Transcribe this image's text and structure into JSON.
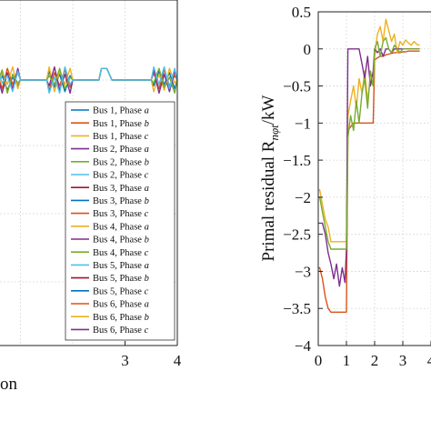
{
  "colors": [
    "#0072bd",
    "#d95319",
    "#edb120",
    "#7e2f8e",
    "#77ac30",
    "#4dbeee",
    "#a2142f"
  ],
  "chart_data": [
    {
      "type": "line",
      "title": "",
      "xlabel": "on",
      "ylabel": "",
      "xlim": [
        0,
        4
      ],
      "xticks": [
        {
          "value": 3,
          "label": "3"
        },
        {
          "value": 4,
          "label": "4"
        }
      ],
      "grid": true,
      "legend_position": "right",
      "legend": [
        {
          "bus": "Bus 1,",
          "phase": "Phase",
          "letter": "a"
        },
        {
          "bus": "Bus 1,",
          "phase": "Phase",
          "letter": "b"
        },
        {
          "bus": "Bus 1,",
          "phase": "Phase",
          "letter": "c"
        },
        {
          "bus": "Bus 2,",
          "phase": "Phase",
          "letter": "a"
        },
        {
          "bus": "Bus 2,",
          "phase": "Phase",
          "letter": "b"
        },
        {
          "bus": "Bus 2,",
          "phase": "Phase",
          "letter": "c"
        },
        {
          "bus": "Bus 3,",
          "phase": "Phase",
          "letter": "a"
        },
        {
          "bus": "Bus 3,",
          "phase": "Phase",
          "letter": "b"
        },
        {
          "bus": "Bus 3,",
          "phase": "Phase",
          "letter": "c"
        },
        {
          "bus": "Bus 4,",
          "phase": "Phase",
          "letter": "a"
        },
        {
          "bus": "Bus 4,",
          "phase": "Phase",
          "letter": "b"
        },
        {
          "bus": "Bus 4,",
          "phase": "Phase",
          "letter": "c"
        },
        {
          "bus": "Bus 5,",
          "phase": "Phase",
          "letter": "a"
        },
        {
          "bus": "Bus 5,",
          "phase": "Phase",
          "letter": "b"
        },
        {
          "bus": "Bus 5,",
          "phase": "Phase",
          "letter": "c"
        },
        {
          "bus": "Bus 6,",
          "phase": "Phase",
          "letter": "a"
        },
        {
          "bus": "Bus 6,",
          "phase": "Phase",
          "letter": "b"
        },
        {
          "bus": "Bus 6,",
          "phase": "Phase",
          "letter": "c"
        }
      ],
      "series_note_values_relative": true,
      "series": [
        {
          "x": [
            0,
            0.5,
            0.55,
            0.65,
            0.75,
            0.85,
            0.95,
            1.0,
            1.5,
            1.55,
            1.65,
            1.75,
            1.85,
            1.95,
            2.0,
            2.5,
            2.55,
            2.65,
            2.75,
            2.85,
            2.95,
            3.0,
            3.5,
            3.55,
            3.65,
            3.75,
            3.85,
            3.95,
            4.0
          ],
          "y": [
            0,
            0,
            -0.5,
            0.3,
            -0.7,
            0.2,
            -0.4,
            0,
            0,
            0.6,
            -0.5,
            0.4,
            -0.8,
            0.3,
            0,
            0,
            0.8,
            0.8,
            0,
            0,
            0,
            0,
            0,
            -0.4,
            0.6,
            -0.3,
            0.5,
            -0.6,
            0
          ]
        },
        {
          "x": [
            0,
            0.5,
            0.55,
            0.65,
            0.75,
            0.85,
            0.95,
            1.0,
            1.5,
            1.55,
            1.65,
            1.75,
            1.85,
            1.95,
            2.0,
            2.5,
            2.55,
            2.65,
            2.75,
            2.85,
            2.95,
            3.0,
            3.5,
            3.55,
            3.65,
            3.75,
            3.85,
            3.95,
            4.0
          ],
          "y": [
            0,
            0,
            0.6,
            -0.6,
            0.8,
            -0.3,
            0.5,
            0,
            0,
            -0.7,
            0.5,
            -0.4,
            0.7,
            -0.5,
            0,
            0,
            0.8,
            0.8,
            0,
            0,
            0,
            0,
            0,
            0.5,
            -0.6,
            0.7,
            -0.4,
            0.3,
            0
          ]
        },
        {
          "x": [
            0,
            0.5,
            0.55,
            0.65,
            0.75,
            0.85,
            0.95,
            1.0,
            1.5,
            1.55,
            1.65,
            1.75,
            1.85,
            1.95,
            2.0,
            2.5,
            2.55,
            2.65,
            2.75,
            2.85,
            2.95,
            3.0,
            3.5,
            3.55,
            3.65,
            3.75,
            3.85,
            3.95,
            4.0
          ],
          "y": [
            0,
            0,
            -0.9,
            0.5,
            -0.3,
            0.9,
            -0.6,
            0,
            0,
            0.9,
            -0.8,
            0.6,
            -0.3,
            0.8,
            0,
            0,
            0.8,
            0.8,
            0,
            0,
            0,
            0,
            0,
            -0.8,
            0.4,
            -0.7,
            0.8,
            -0.2,
            0
          ]
        },
        {
          "x": [
            0,
            0.5,
            0.55,
            0.65,
            0.75,
            0.85,
            0.95,
            1.0,
            1.5,
            1.55,
            1.65,
            1.75,
            1.85,
            1.95,
            2.0,
            2.5,
            2.55,
            2.65,
            2.75,
            2.85,
            2.95,
            3.0,
            3.5,
            3.55,
            3.65,
            3.75,
            3.85,
            3.95,
            4.0
          ],
          "y": [
            0,
            0,
            0.4,
            -0.9,
            0.5,
            -0.6,
            0.8,
            0,
            0,
            -0.4,
            0.9,
            -0.7,
            0.4,
            -0.9,
            0,
            0,
            0.8,
            0.8,
            0,
            0,
            0,
            0,
            0,
            0.7,
            -0.9,
            0.4,
            -0.8,
            0.6,
            0
          ]
        },
        {
          "x": [
            0,
            0.5,
            0.55,
            0.65,
            0.75,
            0.85,
            0.95,
            1.0,
            1.5,
            1.55,
            1.65,
            1.75,
            1.85,
            1.95,
            2.0,
            2.5,
            2.55,
            2.65,
            2.75,
            2.85,
            2.95,
            3.0,
            3.5,
            3.55,
            3.65,
            3.75,
            3.85,
            3.95,
            4.0
          ],
          "y": [
            0,
            0,
            -0.3,
            0.7,
            -0.9,
            0.4,
            -0.2,
            0,
            0,
            0.3,
            -0.3,
            0.8,
            -0.6,
            0.2,
            0,
            0,
            0.8,
            0.8,
            0,
            0,
            0,
            0,
            0,
            -0.2,
            0.8,
            -0.5,
            0.2,
            -0.9,
            0
          ]
        },
        {
          "x": [
            0,
            0.5,
            0.55,
            0.65,
            0.75,
            0.85,
            0.95,
            1.0,
            1.5,
            1.55,
            1.65,
            1.75,
            1.85,
            1.95,
            2.0,
            2.5,
            2.55,
            2.65,
            2.75,
            2.85,
            2.95,
            3.0,
            3.5,
            3.55,
            3.65,
            3.75,
            3.85,
            3.95,
            4.0
          ],
          "y": [
            0,
            0,
            0.8,
            -0.2,
            0.3,
            -0.8,
            0.6,
            0,
            0,
            -0.9,
            0.2,
            -0.9,
            0.9,
            -0.3,
            0,
            0,
            0.8,
            0.8,
            0,
            0,
            0,
            0,
            0,
            0.9,
            -0.3,
            0.9,
            -0.6,
            0.8,
            0
          ]
        }
      ]
    },
    {
      "type": "line",
      "title": "",
      "xlabel": "",
      "ylabel": "Primal residual R",
      "ylabel_sub": "nφt",
      "ylabel_unit": "/kW",
      "xlim": [
        0,
        4
      ],
      "ylim": [
        -4,
        0.5
      ],
      "xticks": [
        {
          "value": 0,
          "label": "0"
        },
        {
          "value": 1,
          "label": "1"
        },
        {
          "value": 2,
          "label": "2"
        },
        {
          "value": 3,
          "label": "3"
        },
        {
          "value": 4,
          "label": "4"
        }
      ],
      "yticks": [
        {
          "value": 0.5,
          "label": "0.5"
        },
        {
          "value": 0,
          "label": "0"
        },
        {
          "value": -0.5,
          "label": "−0.5"
        },
        {
          "value": -1,
          "label": "−1"
        },
        {
          "value": -1.5,
          "label": "−1.5"
        },
        {
          "value": -2,
          "label": "−2"
        },
        {
          "value": -2.5,
          "label": "−2.5"
        },
        {
          "value": -3,
          "label": "−3"
        },
        {
          "value": -3.5,
          "label": "−3.5"
        },
        {
          "value": -4,
          "label": "−4"
        }
      ],
      "grid": true,
      "series": [
        {
          "x": [
            0,
            0.05,
            0.15,
            0.25,
            0.35,
            0.45,
            0.55,
            0.65,
            0.75,
            0.85,
            0.95,
            1.0,
            1.05,
            1.15,
            1.25,
            1.35,
            1.45,
            1.55,
            1.65,
            1.75,
            1.85,
            1.95,
            2.0,
            2.1,
            2.2,
            2.3,
            2.4,
            2.5,
            2.6,
            2.7,
            2.8,
            2.9,
            3.0,
            3.1,
            3.2,
            3.3,
            3.4,
            3.5,
            3.6
          ],
          "y": [
            -2.95,
            -2.95,
            -3.1,
            -3.35,
            -3.5,
            -3.55,
            -3.55,
            -3.55,
            -3.55,
            -3.55,
            -3.55,
            -3.55,
            -1.1,
            -1.05,
            -1.0,
            -1.0,
            -1.0,
            -1.0,
            -1.0,
            -1.0,
            -1.0,
            -1.0,
            -0.15,
            -0.12,
            -0.1,
            -0.1,
            -0.08,
            -0.07,
            -0.06,
            -0.05,
            -0.05,
            -0.05,
            -0.04,
            -0.04,
            -0.03,
            -0.03,
            -0.03,
            -0.03,
            -0.03
          ]
        },
        {
          "x": [
            0,
            0.05,
            0.15,
            0.25,
            0.35,
            0.45,
            0.55,
            0.65,
            0.75,
            0.85,
            0.95,
            1.0,
            1.05,
            1.15,
            1.25,
            1.35,
            1.45,
            1.55,
            1.65,
            1.75,
            1.85,
            1.95,
            2.0,
            2.1,
            2.2,
            2.3,
            2.4,
            2.5,
            2.6,
            2.7,
            2.8,
            2.9,
            3.0,
            3.1,
            3.2,
            3.3,
            3.4,
            3.5,
            3.6
          ],
          "y": [
            -1.9,
            -1.9,
            -2.1,
            -2.3,
            -2.4,
            -2.6,
            -2.6,
            -2.6,
            -2.6,
            -2.6,
            -2.6,
            -2.6,
            -0.9,
            -0.7,
            -0.5,
            -0.8,
            -0.4,
            -0.6,
            -0.3,
            -0.7,
            -0.4,
            -0.5,
            -0.1,
            0.2,
            0.3,
            0.1,
            0.4,
            0.25,
            0.1,
            0.2,
            -0.05,
            0.1,
            0.05,
            0.12,
            0.08,
            0.05,
            0.1,
            0.06,
            0.05
          ]
        },
        {
          "x": [
            0,
            0.05,
            0.15,
            0.25,
            0.35,
            0.45,
            0.55,
            0.65,
            0.75,
            0.85,
            0.95,
            1.0,
            1.05,
            1.15,
            1.25,
            1.35,
            1.45,
            1.55,
            1.65,
            1.75,
            1.85,
            1.95,
            2.0,
            2.1,
            2.2,
            2.3,
            2.4,
            2.5,
            2.6,
            2.7,
            2.8,
            2.9,
            3.0,
            3.1,
            3.2,
            3.3,
            3.4,
            3.5,
            3.6
          ],
          "y": [
            -2.35,
            -2.35,
            -2.35,
            -2.5,
            -2.75,
            -2.9,
            -3.1,
            -2.9,
            -3.2,
            -2.95,
            -3.15,
            -2.7,
            0,
            0,
            0,
            0,
            0,
            -0.2,
            -0.4,
            -0.1,
            -0.5,
            -0.3,
            0,
            -0.05,
            0,
            -0.1,
            0,
            0,
            -0.05,
            0,
            0,
            0,
            0,
            0,
            0,
            0,
            0,
            0,
            0
          ]
        },
        {
          "x": [
            0,
            0.05,
            0.15,
            0.25,
            0.35,
            0.45,
            0.55,
            0.65,
            0.75,
            0.85,
            0.95,
            1.0,
            1.05,
            1.15,
            1.25,
            1.35,
            1.45,
            1.55,
            1.65,
            1.75,
            1.85,
            1.95,
            2.0,
            2.1,
            2.2,
            2.3,
            2.4,
            2.5,
            2.6,
            2.7,
            2.8,
            2.9,
            3.0,
            3.1,
            3.2,
            3.3,
            3.4,
            3.5,
            3.6
          ],
          "y": [
            -2.0,
            -2.0,
            -2.2,
            -2.4,
            -2.6,
            -2.7,
            -2.7,
            -2.7,
            -2.7,
            -2.7,
            -2.7,
            -2.7,
            -1.2,
            -0.9,
            -1.1,
            -0.7,
            -1.0,
            -0.6,
            -0.4,
            -0.8,
            -0.3,
            -0.5,
            0,
            0.1,
            -0.1,
            0.1,
            0.15,
            0,
            -0.05,
            0.05,
            0,
            -0.05,
            0,
            0,
            0,
            0,
            0,
            0,
            0
          ]
        }
      ]
    }
  ]
}
